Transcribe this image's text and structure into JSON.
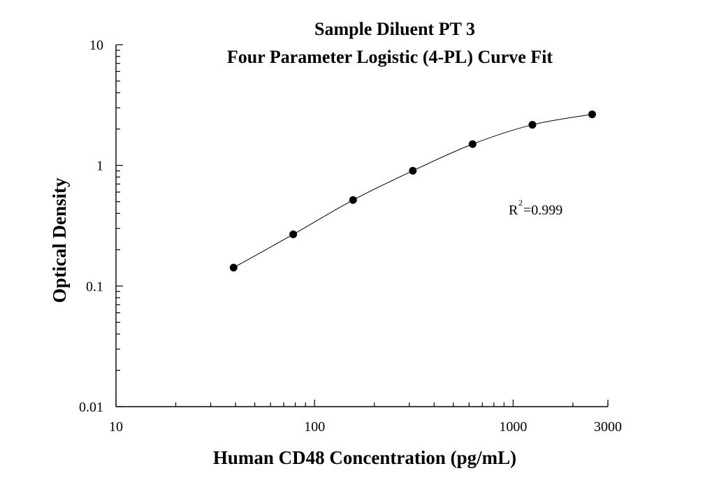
{
  "chart_data": {
    "type": "scatter",
    "title_line1": "Sample Diluent PT 3",
    "title_line2": "Four Parameter Logistic (4-PL) Curve Fit",
    "xlabel": "Human CD48 Concentration (pg/mL)",
    "ylabel": "Optical Density",
    "x_scale": "log",
    "y_scale": "log",
    "xlim": [
      10,
      3000
    ],
    "ylim": [
      0.01,
      10
    ],
    "x_tick_labels": [
      "10",
      "100",
      "1000",
      "3000"
    ],
    "x_tick_values": [
      10,
      100,
      1000,
      3000
    ],
    "y_tick_labels": [
      "0.01",
      "0.1",
      "1",
      "10"
    ],
    "y_tick_values": [
      0.01,
      0.1,
      1,
      10
    ],
    "grid": false,
    "series": [
      {
        "x": [
          39.1,
          78.1,
          156.3,
          312.5,
          625,
          1250,
          2500
        ],
        "y": [
          0.142,
          0.268,
          0.516,
          0.902,
          1.5,
          2.17,
          2.65
        ]
      }
    ],
    "fit_curve": {
      "model": "4-PL",
      "description": "Smooth fitted curve through the standard points",
      "color": "#000000"
    },
    "annotation": {
      "base": "R",
      "superscript": "2",
      "value": "=0.999"
    },
    "marker_color": "#000000"
  }
}
